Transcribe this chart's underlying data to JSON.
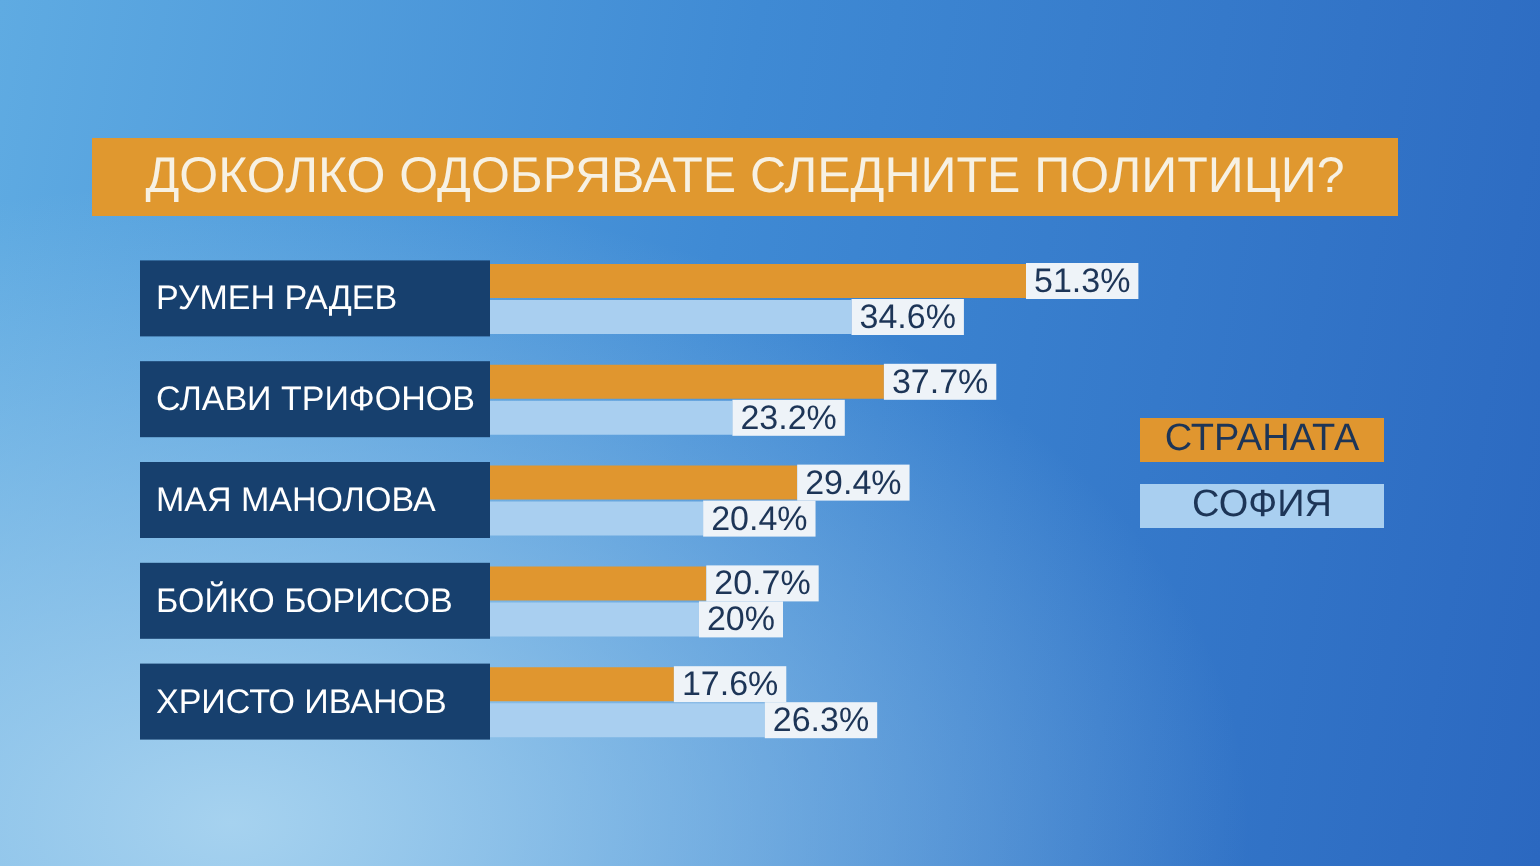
{
  "chart_data": {
    "type": "bar",
    "orientation": "horizontal",
    "title": "ДОКОЛКО ОДОБРЯВАТЕ СЛЕДНИТЕ ПОЛИТИЦИ?",
    "categories": [
      "РУМЕН РАДЕВ",
      "СЛАВИ ТРИФОНОВ",
      "МАЯ МАНОЛОВА",
      "БОЙКО БОРИСОВ",
      "ХРИСТО ИВАНОВ"
    ],
    "series": [
      {
        "name": "СТРАНАТА",
        "color": "#e0962f",
        "values": [
          51.3,
          37.7,
          29.4,
          20.7,
          17.6
        ],
        "value_labels": [
          "51.3%",
          "37.7%",
          "29.4%",
          "20.7%",
          "17.6%"
        ]
      },
      {
        "name": "СОФИЯ",
        "color": "#a9cff0",
        "values": [
          34.6,
          23.2,
          20.4,
          20,
          26.3
        ],
        "value_labels": [
          "34.6%",
          "23.2%",
          "20.4%",
          "20%",
          "26.3%"
        ]
      }
    ],
    "tick_labels": "y",
    "legend": "right"
  }
}
